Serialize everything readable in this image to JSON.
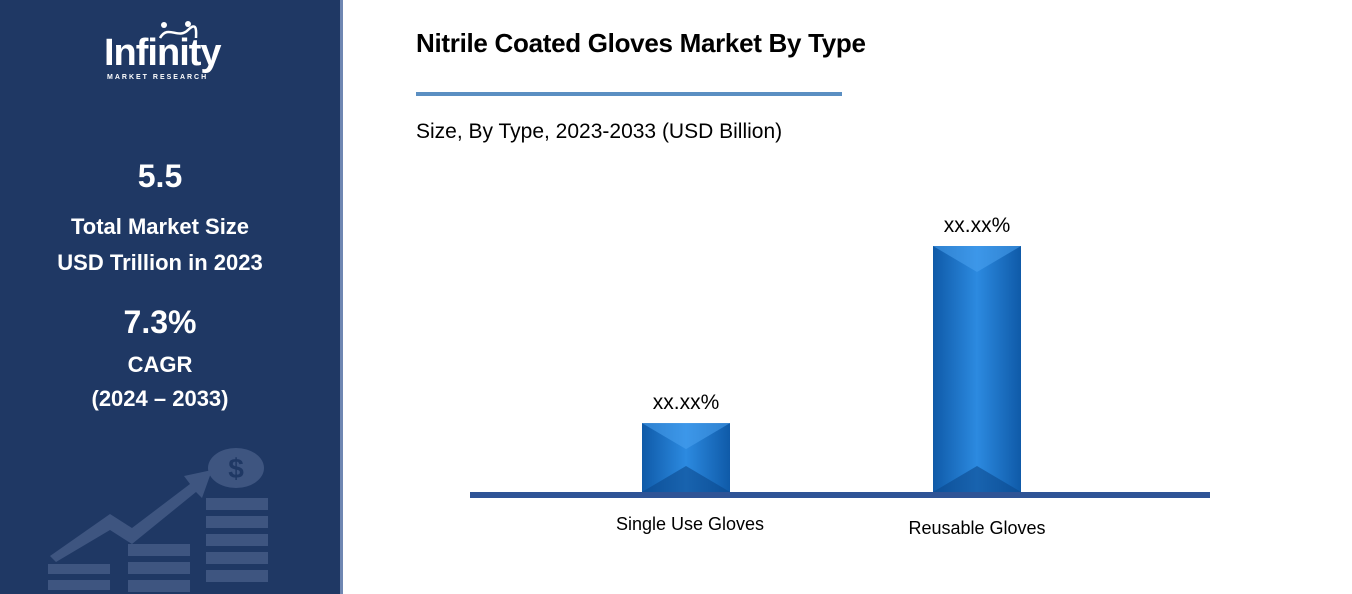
{
  "sidebar": {
    "logo_word": "Infinity",
    "logo_sub": "MARKET RESEARCH",
    "market_size_value": "5.5",
    "market_size_label_1": "Total Market Size",
    "market_size_label_2": "USD Trillion in 2023",
    "cagr_value": "7.3%",
    "cagr_label": "CAGR",
    "cagr_period": "(2024 – 2033)",
    "icon": "growth-chart-dollar-icon"
  },
  "colors": {
    "sidebar_bg": "#1f3864",
    "bar": "#1a73c8",
    "axis": "#2f5496",
    "title_rule": "#5b8fc2"
  },
  "chart_data": {
    "type": "bar",
    "title": "Nitrile Coated Gloves Market By Type",
    "subtitle": "Size, By Type, 2023-2033 (USD Billion)",
    "categories": [
      "Single Use Gloves",
      "Reusable Gloves"
    ],
    "values": [
      0.28,
      1.0
    ],
    "data_labels": [
      "xx.xx%",
      "xx.xx%"
    ],
    "xlabel": "",
    "ylabel": "",
    "ylim": [
      0,
      1
    ],
    "grid": false,
    "legend": "none"
  }
}
